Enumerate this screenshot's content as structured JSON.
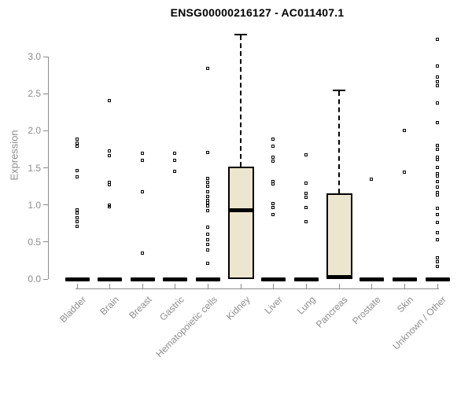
{
  "title": "ENSG00000216127 - AC011407.1",
  "colors": {
    "box_fill": "#EDE6CE",
    "box_stroke": "#000000",
    "axis": "#8C8C8C",
    "label_text": "#8C8C8C",
    "title_text": "#000000",
    "point": "#000000"
  },
  "chart_data": {
    "type": "boxplot",
    "title": "ENSG00000216127 - AC011407.1",
    "xlabel": "",
    "ylabel": "Expression",
    "ylim": [
      0,
      3.35
    ],
    "y_ticks": [
      0.0,
      0.5,
      1.0,
      1.5,
      2.0,
      2.5,
      3.0
    ],
    "y_tick_labels": [
      "0.0",
      "0.5",
      "1.0",
      "1.5",
      "2.0",
      "2.5",
      "3.0"
    ],
    "grid": "off",
    "legend": "none",
    "categories": [
      "Bladder",
      "Brain",
      "Breast",
      "Gastric",
      "Hematopoietic cells",
      "Kidney",
      "Liver",
      "Lung",
      "Pancreas",
      "Prostate",
      "Skin",
      "Unknown / Other"
    ],
    "series": [
      {
        "name": "Bladder",
        "q1": 0,
        "median": 0,
        "q3": 0,
        "whisker_low": 0,
        "whisker_high": 0,
        "points": [
          1.88,
          1.83,
          1.79,
          1.46,
          1.37,
          0.93,
          0.89,
          0.82,
          0.77,
          0.71
        ]
      },
      {
        "name": "Brain",
        "q1": 0,
        "median": 0,
        "q3": 0,
        "whisker_low": 0,
        "whisker_high": 0,
        "points": [
          2.4,
          1.72,
          1.66,
          1.3,
          1.27,
          0.99,
          0.97
        ]
      },
      {
        "name": "Breast",
        "q1": 0,
        "median": 0,
        "q3": 0,
        "whisker_low": 0,
        "whisker_high": 0,
        "points": [
          1.69,
          1.6,
          1.17,
          0.34
        ]
      },
      {
        "name": "Gastric",
        "q1": 0,
        "median": 0,
        "q3": 0,
        "whisker_low": 0,
        "whisker_high": 0,
        "points": [
          1.69,
          1.6,
          1.45
        ]
      },
      {
        "name": "Hematopoietic cells",
        "q1": 0,
        "median": 0,
        "q3": 0,
        "whisker_low": 0,
        "whisker_high": 0,
        "points": [
          2.84,
          1.7,
          1.35,
          1.3,
          1.25,
          1.17,
          1.11,
          1.06,
          1.02,
          0.98,
          0.92,
          0.69,
          0.6,
          0.53,
          0.46,
          0.39,
          0.21
        ]
      },
      {
        "name": "Kidney",
        "q1": 0,
        "median": 0.93,
        "q3": 1.52,
        "whisker_low": 0,
        "whisker_high": 3.31,
        "points": []
      },
      {
        "name": "Liver",
        "q1": 0,
        "median": 0,
        "q3": 0,
        "whisker_low": 0,
        "whisker_high": 0,
        "points": [
          1.88,
          1.79,
          1.64,
          1.59,
          1.31,
          1.28,
          1.01,
          0.96,
          0.86
        ]
      },
      {
        "name": "Lung",
        "q1": 0,
        "median": 0,
        "q3": 0,
        "whisker_low": 0,
        "whisker_high": 0,
        "points": [
          1.67,
          1.29,
          1.15,
          1.1,
          0.96,
          0.77
        ]
      },
      {
        "name": "Pancreas",
        "q1": 0,
        "median": 0,
        "q3": 1.16,
        "whisker_low": 0,
        "whisker_high": 2.55,
        "points": []
      },
      {
        "name": "Prostate",
        "q1": 0,
        "median": 0,
        "q3": 0,
        "whisker_low": 0,
        "whisker_high": 0,
        "points": [
          1.34
        ]
      },
      {
        "name": "Skin",
        "q1": 0,
        "median": 0,
        "q3": 0,
        "whisker_low": 0,
        "whisker_high": 0,
        "points": [
          2.0,
          1.44
        ]
      },
      {
        "name": "Unknown / Other",
        "q1": 0,
        "median": 0,
        "q3": 0,
        "whisker_low": 0,
        "whisker_high": 0,
        "points": [
          3.23,
          2.87,
          2.72,
          2.66,
          2.6,
          2.37,
          2.1,
          1.8,
          1.74,
          1.64,
          1.61,
          1.5,
          1.41,
          1.38,
          1.31,
          1.23,
          1.16,
          1.13,
          0.95,
          0.86,
          0.76,
          0.62,
          0.53,
          0.28,
          0.23,
          0.16
        ]
      }
    ]
  }
}
